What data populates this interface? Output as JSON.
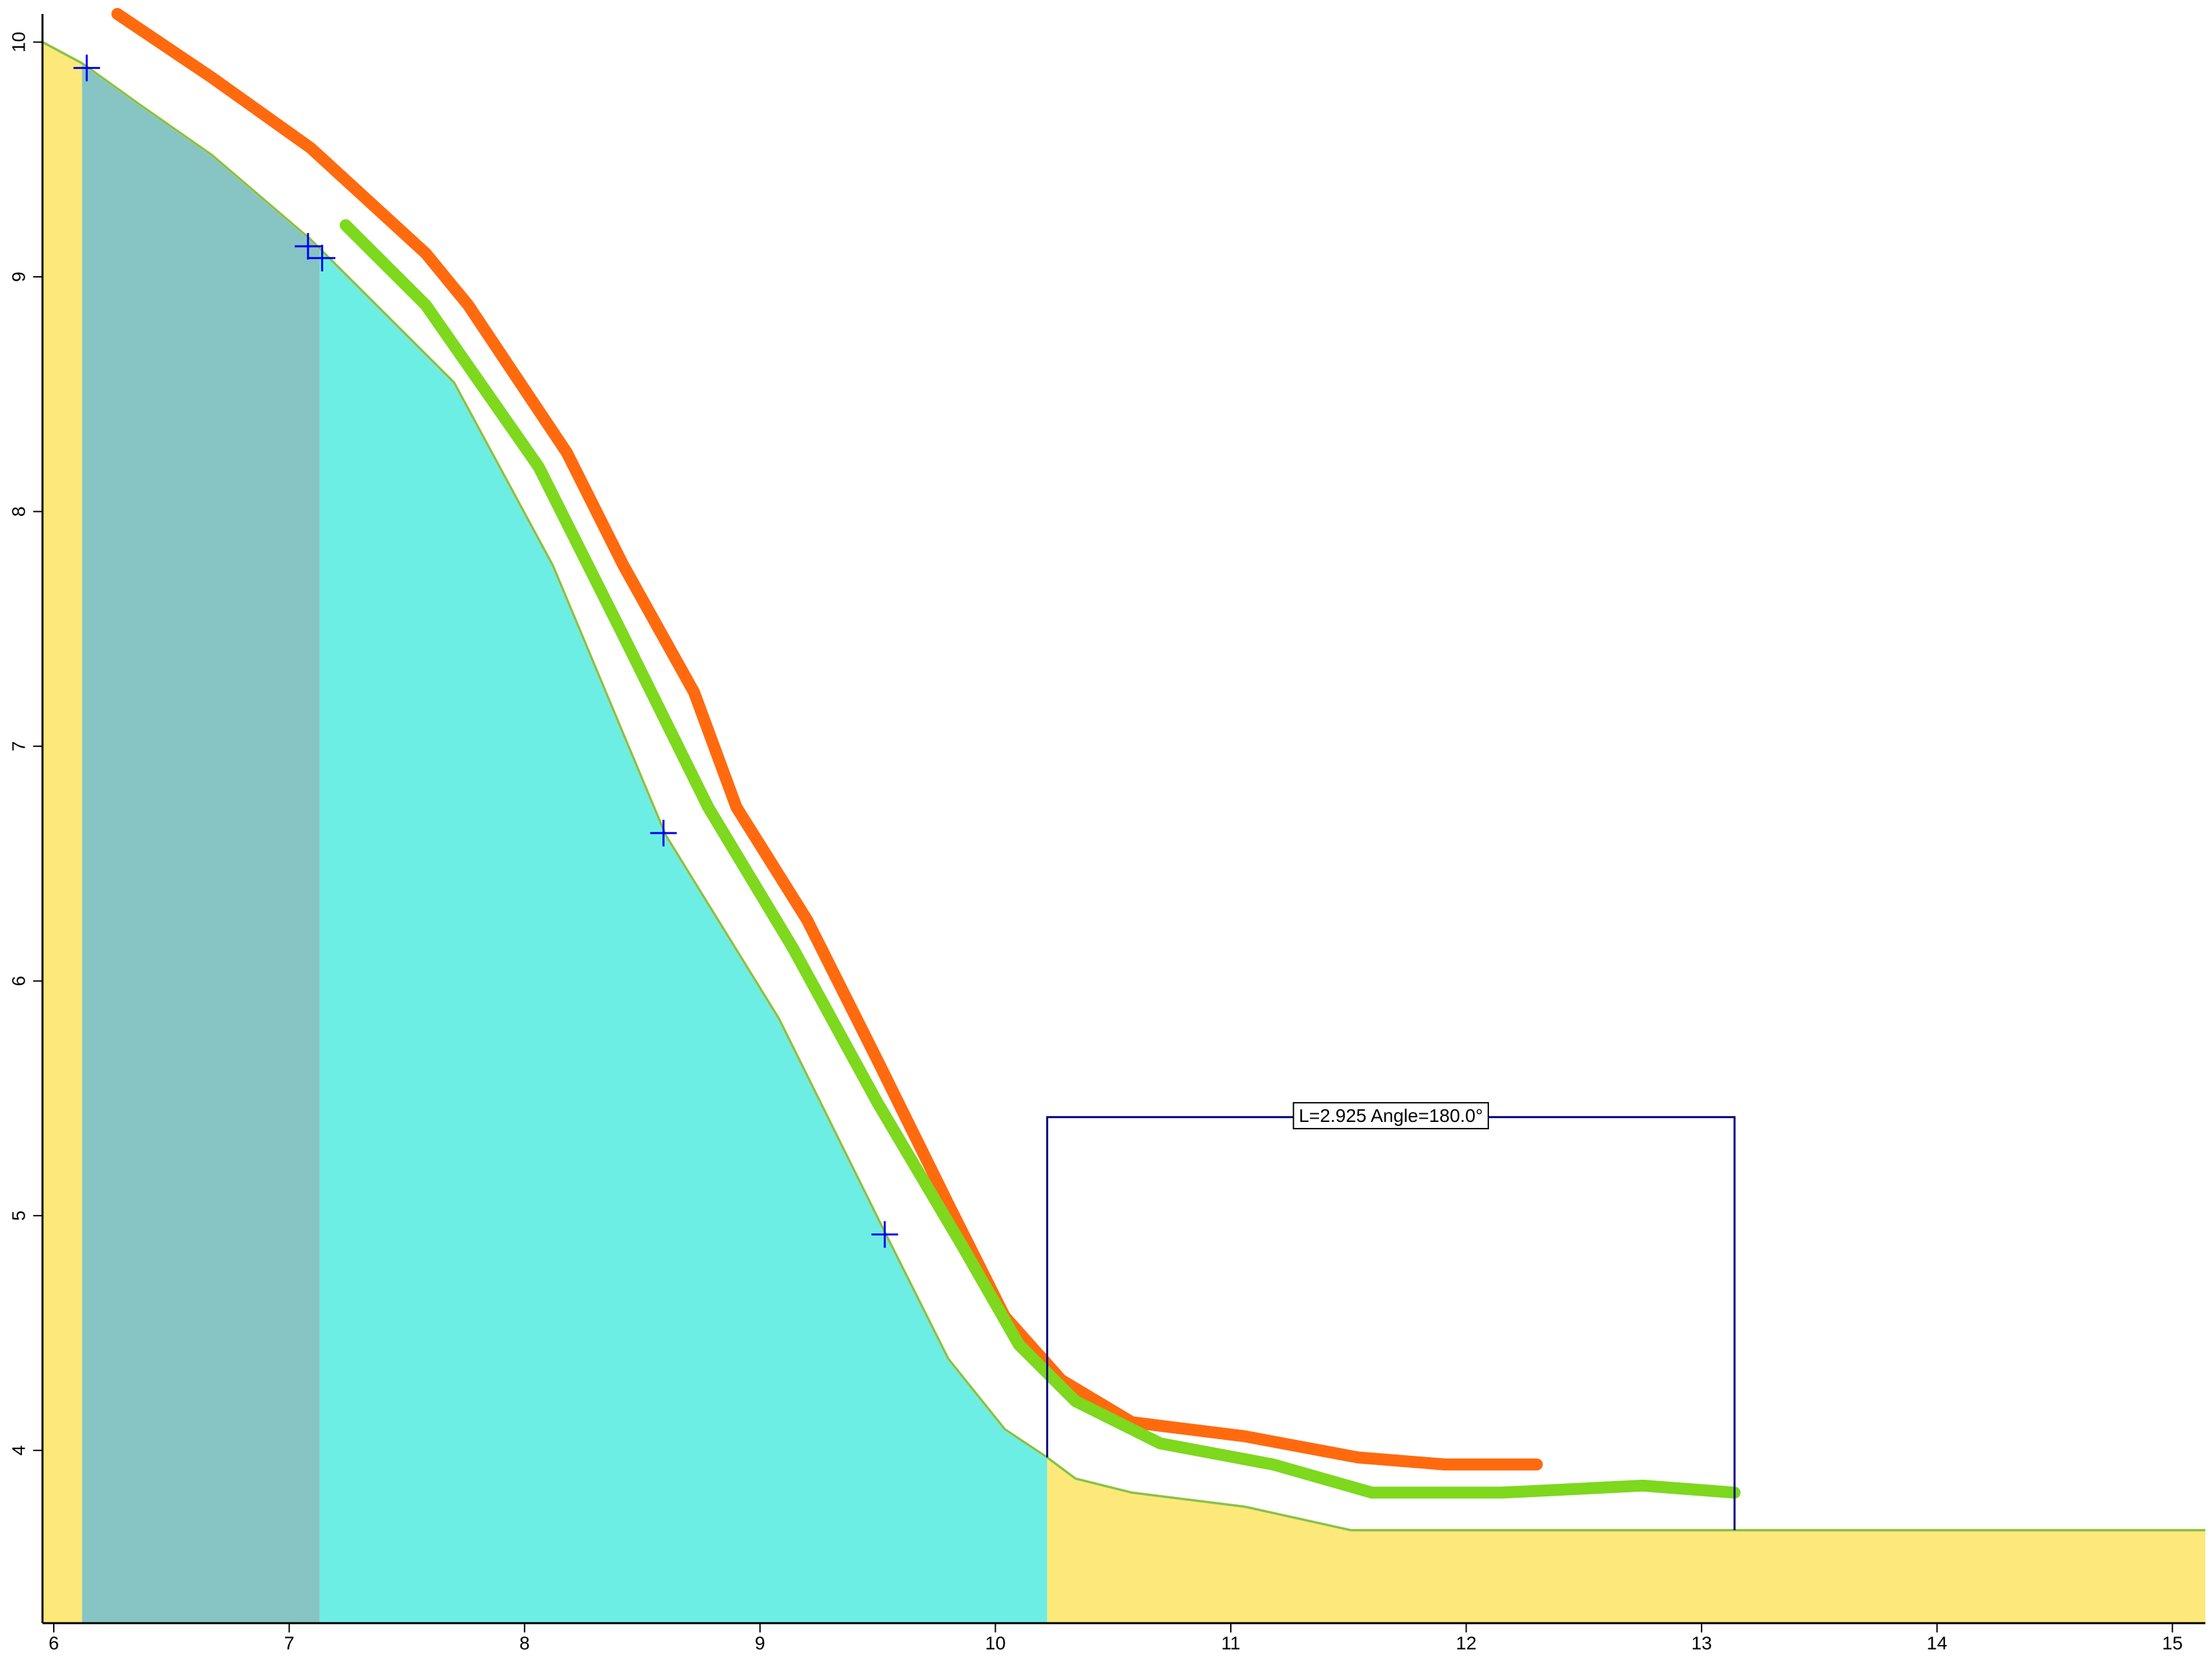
{
  "chart_data": {
    "type": "line",
    "xlim": [
      5.952,
      15.14
    ],
    "ylim": [
      3.264,
      10.12
    ],
    "xticks": [
      6,
      7,
      8,
      9,
      10,
      11,
      12,
      13,
      14,
      15
    ],
    "yticks": [
      4,
      5,
      6,
      7,
      8,
      9,
      10
    ],
    "profile": {
      "color": "#ffd700",
      "x": [
        5.952,
        6.12,
        6.37,
        6.67,
        7.09,
        7.35,
        7.7,
        8.12,
        8.6,
        9.08,
        9.53,
        9.8,
        10.04,
        10.22,
        10.34,
        10.58,
        11.06,
        11.51,
        15.14
      ],
      "y": [
        10.0,
        9.91,
        9.73,
        9.52,
        9.16,
        8.9,
        8.55,
        7.77,
        6.62,
        5.84,
        4.93,
        4.39,
        4.09,
        3.97,
        3.88,
        3.82,
        3.76,
        3.66,
        3.66
      ]
    },
    "regions": [
      {
        "color": "#fde97a",
        "x": [
          5.952,
          6.12
        ]
      },
      {
        "color": "#86c5c4",
        "x": [
          6.12,
          7.13
        ]
      },
      {
        "color": "#6ceee5",
        "x": [
          7.13,
          10.22
        ]
      },
      {
        "color": "#fde97a",
        "x": [
          10.22,
          15.14
        ]
      }
    ],
    "series": [
      {
        "color": "#ff6a0f",
        "x": [
          6.27,
          6.67,
          7.09,
          7.58,
          7.76,
          8.18,
          8.42,
          8.72,
          8.9,
          9.2,
          9.5,
          9.8,
          10.04,
          10.28,
          10.58,
          11.06,
          11.54,
          11.91,
          12.3
        ],
        "y": [
          10.12,
          9.85,
          9.55,
          9.1,
          8.88,
          8.25,
          7.77,
          7.23,
          6.74,
          6.26,
          5.66,
          5.05,
          4.57,
          4.3,
          4.12,
          4.06,
          3.97,
          3.94,
          3.94
        ]
      },
      {
        "color": "#7dd81e",
        "x": [
          7.24,
          7.58,
          8.06,
          8.42,
          8.78,
          9.14,
          9.5,
          9.86,
          10.1,
          10.34,
          10.7,
          11.18,
          11.6,
          12.15,
          12.75,
          13.14
        ],
        "y": [
          9.22,
          8.88,
          8.19,
          7.47,
          6.74,
          6.14,
          5.48,
          4.87,
          4.45,
          4.21,
          4.03,
          3.94,
          3.82,
          3.82,
          3.85,
          3.82
        ]
      }
    ],
    "points": {
      "color": "#0000ee",
      "x": [
        6.14,
        7.08,
        7.14,
        8.59,
        9.53
      ],
      "y": [
        9.89,
        9.13,
        9.08,
        6.63,
        4.92
      ]
    },
    "annotation": {
      "text": "L=2.925  Angle=180.0°",
      "x": [
        10.22,
        13.14
      ],
      "y": 5.42
    }
  }
}
